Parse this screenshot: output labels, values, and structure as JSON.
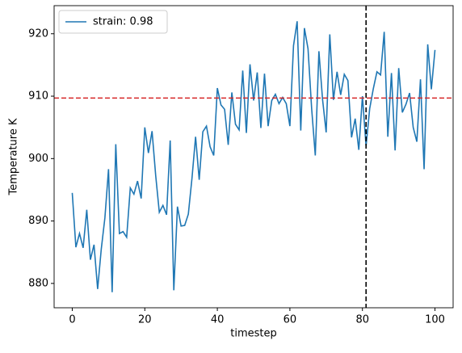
{
  "chart_data": {
    "type": "line",
    "xlabel": "timestep",
    "ylabel": "Temperature K",
    "x": [
      0,
      1,
      2,
      3,
      4,
      5,
      6,
      7,
      8,
      9,
      10,
      11,
      12,
      13,
      14,
      15,
      16,
      17,
      18,
      19,
      20,
      21,
      22,
      23,
      24,
      25,
      26,
      27,
      28,
      29,
      30,
      31,
      32,
      33,
      34,
      35,
      36,
      37,
      38,
      39,
      40,
      41,
      42,
      43,
      44,
      45,
      46,
      47,
      48,
      49,
      50,
      51,
      52,
      53,
      54,
      55,
      56,
      57,
      58,
      59,
      60,
      61,
      62,
      63,
      64,
      65,
      66,
      67,
      68,
      69,
      70,
      71,
      72,
      73,
      74,
      75,
      76,
      77,
      78,
      79,
      80,
      81,
      82,
      83,
      84,
      85,
      86,
      87,
      88,
      89,
      90,
      91,
      92,
      93,
      94,
      95,
      96,
      97,
      98,
      99,
      100
    ],
    "series": [
      {
        "name": "strain: 0.98",
        "color": "#1f77b4",
        "values": [
          894.5,
          885.8,
          888,
          885.7,
          891.8,
          883.8,
          886.2,
          879.1,
          885.5,
          890.5,
          898.3,
          878.6,
          902.3,
          888,
          888.3,
          887.4,
          895.3,
          894.3,
          896.4,
          893.6,
          905,
          900.9,
          904.4,
          897.3,
          891.4,
          892.5,
          891,
          902.9,
          878.9,
          892.3,
          889.2,
          889.3,
          891.1,
          896.8,
          903.5,
          896.6,
          904.3,
          905.2,
          901.9,
          900.5,
          911.3,
          908.6,
          907.9,
          902.2,
          910.6,
          905.5,
          904.6,
          914.1,
          904.1,
          915.1,
          909.3,
          913.8,
          904.9,
          913.6,
          905.2,
          909.3,
          910.3,
          908.8,
          909.8,
          908.8,
          905.2,
          918.1,
          922,
          904.5,
          920.9,
          917.6,
          908,
          900.5,
          917.2,
          909.5,
          904.2,
          919.9,
          909.4,
          913.9,
          910.2,
          913.5,
          912.5,
          903.4,
          906.4,
          901.4,
          910,
          902,
          908,
          911.2,
          913.9,
          913.4,
          920.3,
          903.5,
          913.7,
          901.3,
          914.5,
          907.4,
          908.7,
          910.5,
          905,
          902.7,
          912.7,
          898.3,
          918.3,
          911.1,
          917.4
        ]
      }
    ],
    "hlines": [
      {
        "value": 909.7,
        "color": "#d62728"
      }
    ],
    "vlines": [
      {
        "value": 81,
        "color": "#000000"
      }
    ],
    "xlim": [
      -5,
      105
    ],
    "ylim": [
      876.1,
      924.5
    ],
    "xticks": [
      0,
      20,
      40,
      60,
      80,
      100
    ],
    "yticks": [
      880,
      890,
      900,
      910,
      920
    ],
    "legend": "upper left"
  }
}
